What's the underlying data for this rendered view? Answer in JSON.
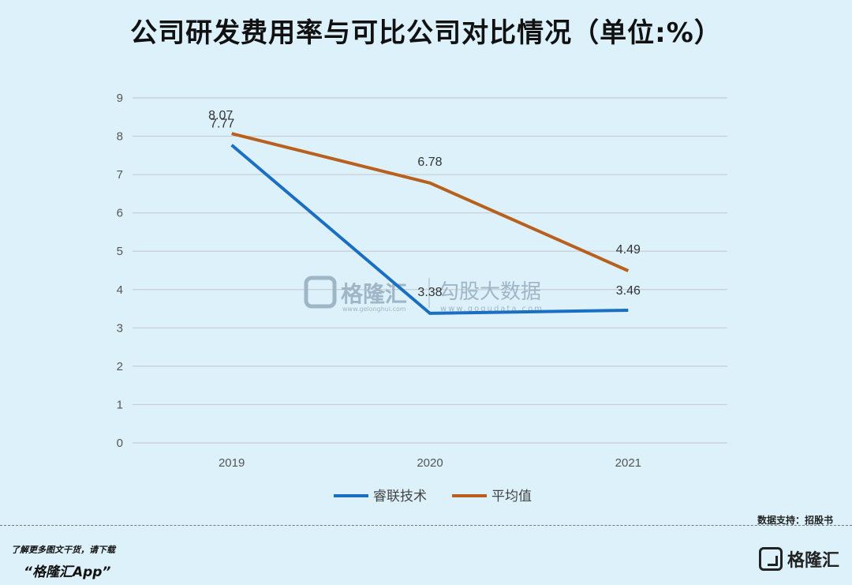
{
  "page": {
    "source_note": "数据支持：招股书",
    "promo_line1": "了解更多图文干货，请下载",
    "promo_line2": "“格隆汇App”",
    "brand_name": "格隆汇"
  },
  "watermark": {
    "brand_cn": "格隆汇",
    "brand_url": "www.gelonghui.com",
    "partner_cn": "勾股大数据",
    "partner_url": "www.gogudata.com"
  },
  "colors": {
    "background": "#dcf1fa",
    "gridline": "#c8cdd2",
    "series_1": "#1b6fc2",
    "series_2": "#b8601e",
    "watermark": "#9fb6c7"
  },
  "chart_data": {
    "type": "line",
    "title": "公司研发费用率与可比公司对比情况（单位:%）",
    "categories": [
      "2019",
      "2020",
      "2021"
    ],
    "ylim": [
      0,
      9
    ],
    "yticks": [
      0,
      1,
      2,
      3,
      4,
      5,
      6,
      7,
      8,
      9
    ],
    "grid": true,
    "legend_position": "bottom",
    "series": [
      {
        "name": "睿联技术",
        "values": [
          7.77,
          3.38,
          3.46
        ],
        "labels": [
          "7.77",
          "3.38",
          "3.46"
        ],
        "color": "#1b6fc2"
      },
      {
        "name": "平均值",
        "values": [
          8.07,
          6.78,
          4.49
        ],
        "labels": [
          "8.07",
          "6.78",
          "4.49"
        ],
        "color": "#b8601e"
      }
    ]
  }
}
